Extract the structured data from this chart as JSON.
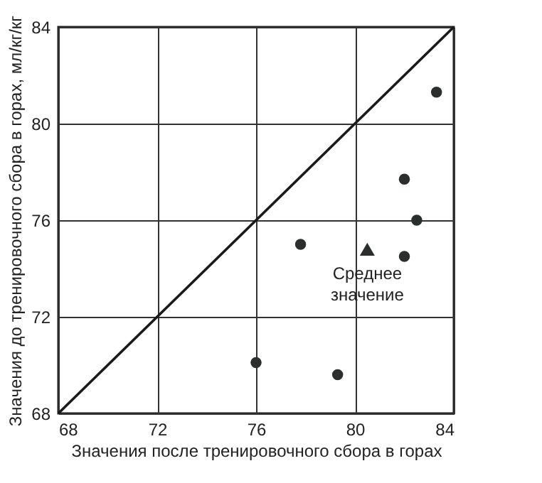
{
  "chart_data": {
    "type": "scatter",
    "xlabel": "Значения после тренировочного сбора в горах",
    "ylabel": "Значения до тренировочного сбора в горах, мл/кг/кг",
    "xlim": [
      68,
      84
    ],
    "ylim": [
      68,
      84
    ],
    "xticks": [
      68,
      72,
      76,
      80,
      84
    ],
    "yticks": [
      68,
      72,
      76,
      80,
      84
    ],
    "grid": true,
    "series": [
      {
        "type": "line",
        "color": "#1a1a1a",
        "marker": "none",
        "line_style": "solid",
        "x": [
          68,
          84
        ],
        "values": [
          68,
          84
        ]
      },
      {
        "color": "#2a2f2d",
        "marker": "circle",
        "x": [
          83.3,
          82.0,
          82.5,
          77.8,
          82.0,
          76.0,
          79.3
        ],
        "values": [
          81.3,
          77.7,
          76.0,
          75.0,
          74.5,
          70.1,
          69.6
        ]
      },
      {
        "color": "#2a2f2d",
        "marker": "triangle",
        "x": [
          80.5
        ],
        "values": [
          74.8
        ]
      }
    ],
    "annotations": [
      {
        "text": "Среднее\nзначение",
        "x": 80.5,
        "y": 74.8
      }
    ]
  }
}
